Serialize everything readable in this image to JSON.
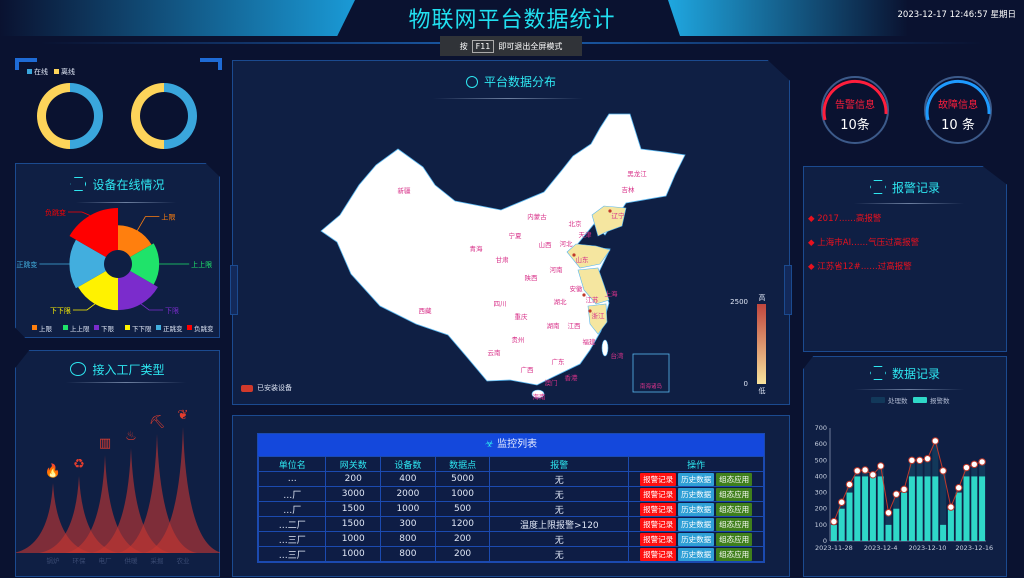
{
  "header": {
    "title": "物联网平台数据统计",
    "datetime": "2023-12-17 12:46:57 星期日",
    "toast": {
      "prefix": "按",
      "key": "F11",
      "suffix": "即可退出全屏模式"
    }
  },
  "online": {
    "legend": [
      {
        "label": "在线",
        "color": "#3aa6dc"
      },
      {
        "label": "离线",
        "color": "#fdd45a"
      }
    ],
    "donuts": [
      {
        "online": 50,
        "offline": 50
      },
      {
        "online": 50,
        "offline": 50
      }
    ]
  },
  "device_status": {
    "title": "设备在线情况",
    "icon": "hexagon-nodes-icon",
    "items": [
      {
        "label": "上限",
        "value": 10,
        "color": "#ff7f0e"
      },
      {
        "label": "上上限",
        "value": 11,
        "color": "#1fe36a"
      },
      {
        "label": "下限",
        "value": 13,
        "color": "#7b2ccc"
      },
      {
        "label": "下下限",
        "value": 13,
        "color": "#fff200"
      },
      {
        "label": "正跳变",
        "value": 14,
        "color": "#42aede"
      },
      {
        "label": "负跳变",
        "value": 17,
        "color": "#ff0000"
      }
    ]
  },
  "factory_types": {
    "title": "接入工厂类型",
    "icon": "snowflake-nodes-icon",
    "items": [
      {
        "label": "锅炉",
        "value": 50,
        "icon": "fire-icon"
      },
      {
        "label": "环保",
        "value": 55,
        "icon": "recycle-icon"
      },
      {
        "label": "电厂",
        "value": 70,
        "icon": "building-icon"
      },
      {
        "label": "供暖",
        "value": 75,
        "icon": "radiator-icon"
      },
      {
        "label": "采掘",
        "value": 85,
        "icon": "excavator-icon"
      },
      {
        "label": "农业",
        "value": 90,
        "icon": "leaf-icon"
      }
    ]
  },
  "map": {
    "title": "平台数据分布",
    "legend_label": "已安装设备",
    "visual_max": "2500",
    "visual_min": "0",
    "high_label": "高",
    "low_label": "低",
    "south_sea_label": "南海诸岛",
    "highlighted": [
      "辽宁",
      "山东",
      "江苏",
      "浙江"
    ],
    "provinces": [
      "新疆",
      "西藏",
      "青海",
      "甘肃",
      "宁夏",
      "内蒙古",
      "北京",
      "天津",
      "山西",
      "河北",
      "山东",
      "河南",
      "陕西",
      "四川",
      "重庆",
      "湖北",
      "安徽",
      "江苏",
      "上海",
      "浙江",
      "湖南",
      "江西",
      "贵州",
      "云南",
      "广西",
      "广东",
      "福建",
      "台湾",
      "香港",
      "澳门",
      "海南",
      "黑龙江",
      "吉林",
      "辽宁"
    ]
  },
  "monitor": {
    "title": "监控列表",
    "columns": [
      "单位名",
      "网关数",
      "设备数",
      "数据点",
      "报警",
      "操作"
    ],
    "actions": [
      "报警记录",
      "历史数据",
      "组态应用"
    ],
    "rows": [
      [
        "…",
        "200",
        "400",
        "5000",
        "无"
      ],
      [
        "…厂",
        "3000",
        "2000",
        "1000",
        "无"
      ],
      [
        "…厂",
        "1500",
        "1000",
        "500",
        "无"
      ],
      [
        "…二厂",
        "1500",
        "300",
        "1200",
        "温度上限报警>120"
      ],
      [
        "…三厂",
        "1000",
        "800",
        "200",
        "无"
      ],
      [
        "…三厂",
        "1000",
        "800",
        "200",
        "无"
      ]
    ]
  },
  "gauges": [
    {
      "label": "告警信息",
      "value": "10条",
      "color": "#ff1e3c"
    },
    {
      "label": "故障信息",
      "value": "10 条",
      "color": "#1e9bff"
    }
  ],
  "alarm_records": {
    "title": "报警记录",
    "items": [
      "2017……高报警",
      "上海市AI……气压过高报警",
      "江苏省12#……过高报警"
    ]
  },
  "chart_data": {
    "type": "bar",
    "title": "数据记录",
    "x": [
      "2023-11-28",
      "2023-11-29",
      "2023-11-30",
      "2023-12-1",
      "2023-12-2",
      "2023-12-3",
      "2023-12-4",
      "2023-12-5",
      "2023-12-6",
      "2023-12-7",
      "2023-12-8",
      "2023-12-9",
      "2023-12-10",
      "2023-12-11",
      "2023-12-12",
      "2023-12-13",
      "2023-12-14",
      "2023-12-15",
      "2023-12-16",
      "2023-12-17"
    ],
    "xtick_labels": [
      "2023-11-28",
      "2023-12-4",
      "2023-12-10",
      "2023-12-16"
    ],
    "yticks": [
      "0",
      "100",
      "200",
      "300",
      "400",
      "500",
      "600",
      "700"
    ],
    "ylim": [
      0,
      700
    ],
    "series": [
      {
        "name": "处理数",
        "type": "bar+line",
        "values": [
          120,
          240,
          350,
          435,
          440,
          410,
          465,
          175,
          290,
          320,
          500,
          500,
          510,
          620,
          435,
          210,
          330,
          455,
          475,
          490
        ]
      },
      {
        "name": "报警数",
        "type": "bar",
        "values": [
          100,
          200,
          300,
          400,
          400,
          400,
          400,
          100,
          200,
          300,
          400,
          400,
          400,
          400,
          100,
          200,
          300,
          400,
          400,
          400
        ]
      }
    ],
    "legend": "top",
    "colors": {
      "处理数": "#12385a",
      "报警数": "#2fd8c8",
      "line": "#c0392b"
    }
  }
}
